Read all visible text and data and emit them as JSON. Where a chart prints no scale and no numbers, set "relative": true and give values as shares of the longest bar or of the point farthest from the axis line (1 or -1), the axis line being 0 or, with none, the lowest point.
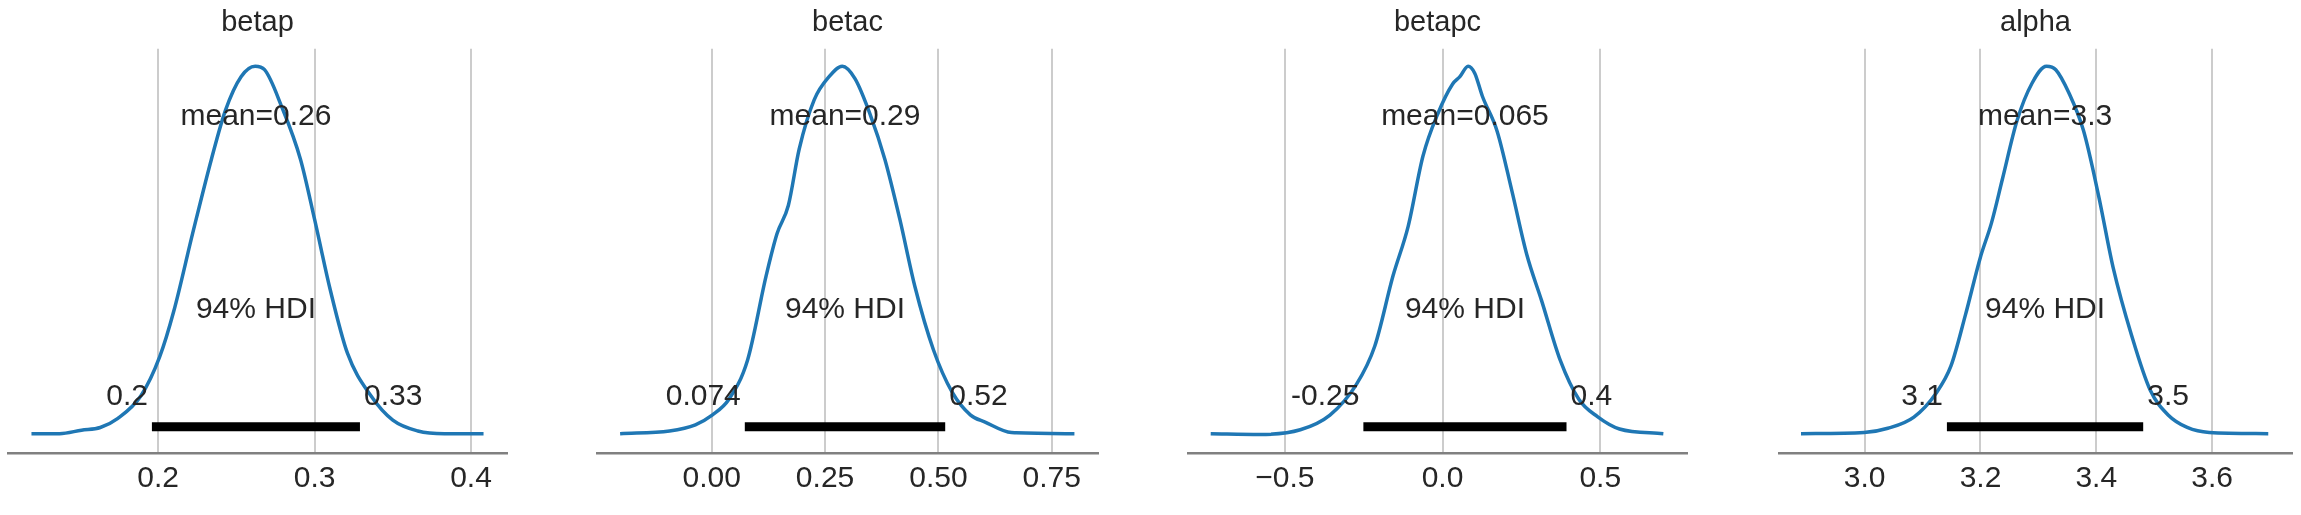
{
  "chart_data": [
    {
      "type": "line",
      "title": "betap",
      "relative": true,
      "grid": "x",
      "tick_labels": "x",
      "xlim": [
        0.104,
        0.423
      ],
      "xticks": [
        0.2,
        0.3,
        0.4
      ],
      "series": [
        {
          "color": "#1f77b4",
          "x": [
            0.119,
            0.137,
            0.151,
            0.163,
            0.174,
            0.189,
            0.201,
            0.21,
            0.222,
            0.234,
            0.243,
            0.253,
            0.262,
            0.268,
            0.279,
            0.291,
            0.3,
            0.31,
            0.321,
            0.336,
            0.35,
            0.366,
            0.383,
            0.408
          ],
          "values": [
            0.05,
            0.05,
            0.059,
            0.066,
            0.089,
            0.148,
            0.249,
            0.367,
            0.567,
            0.759,
            0.886,
            0.973,
            1.0,
            0.991,
            0.895,
            0.759,
            0.604,
            0.422,
            0.258,
            0.148,
            0.085,
            0.057,
            0.05,
            0.05
          ]
        },
        {
          "color": "#000000",
          "x": [
            0.196,
            0.329
          ],
          "values": [
            0.068,
            0.068
          ]
        }
      ],
      "annotations": [
        "mean=0.26",
        "94% HDI",
        "0.2",
        "0.33"
      ]
    },
    {
      "type": "line",
      "title": "betac",
      "relative": true,
      "grid": "x",
      "tick_labels": "x",
      "xlim": [
        -0.253,
        0.852
      ],
      "xticks": [
        {
          "value": 0,
          "label": "0.00"
        },
        0.25,
        {
          "value": 0.5,
          "label": "0.50"
        },
        0.75
      ],
      "series": [
        {
          "color": "#1f77b4",
          "x": [
            -0.202,
            -0.093,
            -0.036,
            0.001,
            0.038,
            0.079,
            0.12,
            0.144,
            0.169,
            0.193,
            0.226,
            0.259,
            0.288,
            0.316,
            0.349,
            0.382,
            0.415,
            0.448,
            0.489,
            0.53,
            0.571,
            0.603,
            0.661,
            0.8
          ],
          "values": [
            0.05,
            0.057,
            0.073,
            0.098,
            0.139,
            0.24,
            0.458,
            0.567,
            0.64,
            0.786,
            0.913,
            0.973,
            1.0,
            0.968,
            0.877,
            0.759,
            0.604,
            0.431,
            0.267,
            0.158,
            0.098,
            0.08,
            0.053,
            0.05
          ]
        },
        {
          "color": "#000000",
          "x": [
            0.073,
            0.515
          ],
          "values": [
            0.068,
            0.068
          ]
        }
      ],
      "annotations": [
        "mean=0.29",
        "94% HDI",
        "0.074",
        "0.52"
      ]
    },
    {
      "type": "line",
      "title": "betapc",
      "relative": true,
      "grid": "x",
      "tick_labels": "x",
      "xlim": [
        -0.807,
        0.775
      ],
      "xticks": [
        {
          "value": -0.5,
          "label": "−0.5"
        },
        {
          "value": 0,
          "label": "0.0"
        },
        0.5
      ],
      "series": [
        {
          "color": "#1f77b4",
          "x": [
            -0.735,
            -0.58,
            -0.451,
            -0.357,
            -0.274,
            -0.215,
            -0.157,
            -0.109,
            -0.062,
            -0.015,
            0.032,
            0.055,
            0.081,
            0.102,
            0.126,
            0.173,
            0.22,
            0.267,
            0.314,
            0.373,
            0.432,
            0.491,
            0.561,
            0.7
          ],
          "values": [
            0.05,
            0.048,
            0.06,
            0.098,
            0.176,
            0.276,
            0.458,
            0.586,
            0.768,
            0.877,
            0.954,
            0.973,
            1.0,
            0.982,
            0.923,
            0.832,
            0.677,
            0.513,
            0.394,
            0.24,
            0.139,
            0.094,
            0.062,
            0.05
          ]
        },
        {
          "color": "#000000",
          "x": [
            -0.251,
            0.393
          ],
          "values": [
            0.068,
            0.068
          ]
        }
      ],
      "annotations": [
        "mean=0.065",
        "94% HDI",
        "-0.25",
        "0.4"
      ]
    },
    {
      "type": "line",
      "title": "alpha",
      "relative": true,
      "grid": "x",
      "tick_labels": "x",
      "xlim": [
        2.852,
        3.738
      ],
      "xticks": [
        {
          "value": 3,
          "label": "3.0"
        },
        3.2,
        3.4,
        3.6
      ],
      "series": [
        {
          "color": "#1f77b4",
          "x": [
            2.89,
            2.999,
            3.04,
            3.085,
            3.123,
            3.149,
            3.174,
            3.2,
            3.219,
            3.238,
            3.263,
            3.289,
            3.314,
            3.33,
            3.353,
            3.378,
            3.404,
            3.429,
            3.461,
            3.493,
            3.525,
            3.557,
            3.595,
            3.697
          ],
          "values": [
            0.05,
            0.053,
            0.064,
            0.093,
            0.154,
            0.225,
            0.357,
            0.507,
            0.595,
            0.709,
            0.859,
            0.956,
            1.0,
            0.991,
            0.93,
            0.833,
            0.665,
            0.48,
            0.304,
            0.163,
            0.097,
            0.066,
            0.053,
            0.05
          ]
        },
        {
          "color": "#000000",
          "x": [
            3.142,
            3.481
          ],
          "values": [
            0.068,
            0.068
          ]
        }
      ],
      "annotations": [
        "mean=3.3",
        "94% HDI",
        "3.1",
        "3.5"
      ]
    }
  ]
}
